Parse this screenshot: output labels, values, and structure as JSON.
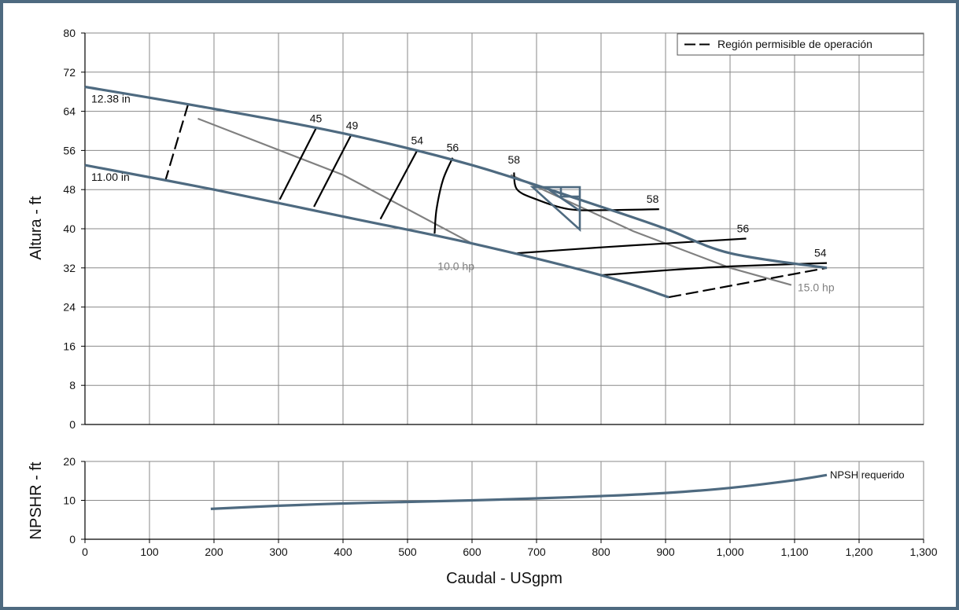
{
  "colors": {
    "frame": "#4e6a80",
    "head_curve": "#4e6a80",
    "efficiency": "#000000",
    "power": "#808080",
    "grid": "#8a8a8a"
  },
  "chart_data": [
    {
      "type": "line",
      "name": "head",
      "xlabel": "Caudal - USgpm",
      "ylabel": "Altura - ft",
      "xlim": [
        0,
        1300
      ],
      "ylim": [
        0,
        80
      ],
      "x_ticks": [
        "0",
        "100",
        "200",
        "300",
        "400",
        "500",
        "600",
        "700",
        "800",
        "900",
        "1,000",
        "1,100",
        "1,200",
        "1,300"
      ],
      "y_ticks": [
        "0",
        "8",
        "16",
        "24",
        "32",
        "40",
        "48",
        "56",
        "64",
        "72",
        "80"
      ],
      "grid": true,
      "legend": {
        "position": "top-right",
        "label": "Región permisible de operación"
      },
      "impeller_curves": [
        {
          "label": "12.38 in",
          "points": [
            [
              0,
              69
            ],
            [
              200,
              64.5
            ],
            [
              400,
              59.5
            ],
            [
              600,
              53
            ],
            [
              800,
              44.5
            ],
            [
              900,
              40
            ],
            [
              1000,
              35
            ],
            [
              1150,
              32
            ]
          ]
        },
        {
          "label": "11.00 in",
          "points": [
            [
              0,
              53
            ],
            [
              200,
              48
            ],
            [
              400,
              42.5
            ],
            [
              600,
              37
            ],
            [
              800,
              30.5
            ],
            [
              905,
              26
            ]
          ]
        }
      ],
      "allowable_boundaries": [
        {
          "points": [
            [
              160,
              65.5
            ],
            [
              125,
              50
            ]
          ]
        },
        {
          "points": [
            [
              905,
              26
            ],
            [
              1150,
              32
            ]
          ]
        }
      ],
      "efficiency_curves": [
        {
          "label": "45",
          "points": [
            [
              302,
              46
            ],
            [
              358,
              60.5
            ]
          ]
        },
        {
          "label": "49",
          "points": [
            [
              355,
              44.5
            ],
            [
              412,
              59
            ]
          ]
        },
        {
          "label": "54",
          "points": [
            [
              458,
              42
            ],
            [
              515,
              56
            ]
          ]
        },
        {
          "label": "56",
          "points": [
            [
              542,
              39
            ],
            [
              545,
              44
            ],
            [
              555,
              50
            ],
            [
              570,
              54.5
            ]
          ]
        },
        {
          "label": "58",
          "points": [
            [
              665,
              51.5
            ],
            [
              670,
              48
            ],
            [
              700,
              46
            ],
            [
              750,
              44
            ],
            [
              810,
              43.8
            ],
            [
              890,
              44
            ]
          ]
        },
        {
          "label": "56",
          "points": [
            [
              670,
              35
            ],
            [
              800,
              36.2
            ],
            [
              900,
              37
            ],
            [
              1025,
              38
            ]
          ]
        },
        {
          "label": "54",
          "points": [
            [
              800,
              30.5
            ],
            [
              900,
              31.5
            ],
            [
              1000,
              32.3
            ],
            [
              1150,
              33
            ]
          ]
        }
      ],
      "efficiency_label_positions": [
        [
          358,
          61
        ],
        [
          414,
          59.5
        ],
        [
          515,
          56.5
        ],
        [
          570,
          55
        ],
        [
          665,
          52.5
        ],
        [
          880,
          44.5
        ],
        [
          1020,
          38.5
        ],
        [
          1140,
          33.5
        ]
      ],
      "power_curves": [
        {
          "label": "10.0 hp",
          "points": [
            [
              175,
              62.5
            ],
            [
              400,
              51
            ],
            [
              600,
              37
            ]
          ]
        },
        {
          "label": "15.0 hp",
          "points": [
            [
              660,
              51
            ],
            [
              850,
              39.5
            ],
            [
              1000,
              32
            ],
            [
              1095,
              28.5
            ]
          ]
        }
      ],
      "bep_marker": {
        "x": 750,
        "y": 44
      }
    },
    {
      "type": "line",
      "name": "npsh",
      "xlabel": "Caudal - USgpm",
      "ylabel": "NPSHR - ft",
      "xlim": [
        0,
        1300
      ],
      "ylim": [
        0,
        20
      ],
      "y_ticks": [
        "0",
        "10",
        "20"
      ],
      "grid": true,
      "series": [
        {
          "name": "NPSH requerido",
          "points": [
            [
              195,
              7.8
            ],
            [
              300,
              8.6
            ],
            [
              400,
              9.2
            ],
            [
              500,
              9.6
            ],
            [
              600,
              10.0
            ],
            [
              700,
              10.5
            ],
            [
              800,
              11.1
            ],
            [
              900,
              11.9
            ],
            [
              1000,
              13.2
            ],
            [
              1100,
              15.2
            ],
            [
              1150,
              16.5
            ]
          ]
        }
      ]
    }
  ]
}
